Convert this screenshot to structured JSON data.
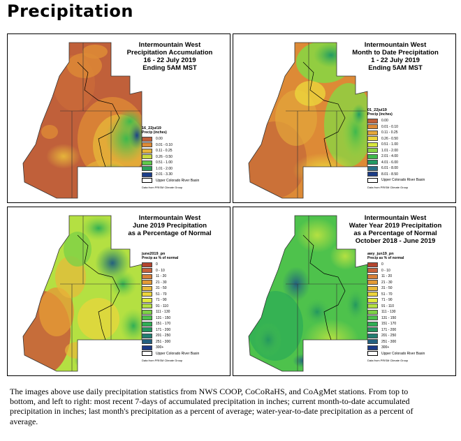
{
  "page": {
    "title": "Precipitation"
  },
  "panels": [
    {
      "title_lines": [
        "Intermountain West",
        "Precipitation Accumulation",
        "16 - 22 July 2019",
        "Ending 5AM MST"
      ],
      "legend_name": "16_22jul19",
      "legend_unit": "Precip (inches)",
      "legend": [
        {
          "label": "0.00",
          "color": "#c0603a"
        },
        {
          "label": "0.01 - 0.10",
          "color": "#dd8a36"
        },
        {
          "label": "0.11 - 0.25",
          "color": "#e6b43a"
        },
        {
          "label": "0.26 - 0.50",
          "color": "#c9dc40"
        },
        {
          "label": "0.51 - 1.00",
          "color": "#5ec84a"
        },
        {
          "label": "1.01 - 2.00",
          "color": "#2aa05a"
        },
        {
          "label": "2.01 - 3.30",
          "color": "#1c3f8a"
        }
      ],
      "basin_label": "Upper Colorado River Basin",
      "credit": "Data from PRISM Climate Group"
    },
    {
      "title_lines": [
        "Intermountain West",
        "Month to Date Precipitation",
        "1 - 22 July 2019",
        "Ending 5AM MST"
      ],
      "legend_name": "01_22jul19",
      "legend_unit": "Precip (inches)",
      "legend": [
        {
          "label": "0.00",
          "color": "#c0603a"
        },
        {
          "label": "0.01 - 0.10",
          "color": "#dd8a36"
        },
        {
          "label": "0.11 - 0.25",
          "color": "#e3a63a"
        },
        {
          "label": "0.26 - 0.50",
          "color": "#ecd53c"
        },
        {
          "label": "0.51 - 1.00",
          "color": "#d8e83e"
        },
        {
          "label": "1.01 - 2.00",
          "color": "#8ad443"
        },
        {
          "label": "2.01 - 4.00",
          "color": "#3fb84d"
        },
        {
          "label": "4.01 - 6.00",
          "color": "#229a63"
        },
        {
          "label": "6.01 - 8.00",
          "color": "#2a6f86"
        },
        {
          "label": "8.01 - 8.50",
          "color": "#1c3c86"
        }
      ],
      "basin_label": "Upper Colorado River Basin",
      "credit": "Data from PRISM Climate Group"
    },
    {
      "title_lines": [
        "Intermountain West",
        "June 2019 Precipitation",
        "as a Percentage of Normal"
      ],
      "legend_name": "june2019_pn",
      "legend_unit": "Precip as % of normal",
      "legend": [
        {
          "label": "0",
          "color": "#b4442e"
        },
        {
          "label": "0 - 10",
          "color": "#c8613a"
        },
        {
          "label": "11 - 20",
          "color": "#d98037"
        },
        {
          "label": "21 - 30",
          "color": "#e39a36"
        },
        {
          "label": "31 - 50",
          "color": "#e8b83a"
        },
        {
          "label": "51 - 70",
          "color": "#ecd43c"
        },
        {
          "label": "71 - 90",
          "color": "#e2ea3e"
        },
        {
          "label": "91 - 110",
          "color": "#b4e042"
        },
        {
          "label": "111 - 130",
          "color": "#7ed146"
        },
        {
          "label": "131 - 150",
          "color": "#4ec24c"
        },
        {
          "label": "151 - 170",
          "color": "#2fae55"
        },
        {
          "label": "171 - 200",
          "color": "#23975f"
        },
        {
          "label": "201 - 250",
          "color": "#237e72"
        },
        {
          "label": "251 - 300",
          "color": "#24607f"
        },
        {
          "label": "300+",
          "color": "#1c3a86"
        }
      ],
      "basin_label": "Upper Colorado River Basin",
      "credit": "Data from PRISM Climate Group"
    },
    {
      "title_lines": [
        "Intermountain West",
        "Water Year 2019 Precipitation",
        "as a Percentage of Normal",
        "October 2018 - June 2019"
      ],
      "legend_name": "awy_jun19_pn",
      "legend_unit": "Precip as % of normal",
      "legend": [
        {
          "label": "0",
          "color": "#b4442e"
        },
        {
          "label": "0 - 10",
          "color": "#c8613a"
        },
        {
          "label": "11 - 20",
          "color": "#d98037"
        },
        {
          "label": "21 - 30",
          "color": "#e39a36"
        },
        {
          "label": "31 - 50",
          "color": "#e8b83a"
        },
        {
          "label": "51 - 70",
          "color": "#ecd43c"
        },
        {
          "label": "71 - 90",
          "color": "#e2ea3e"
        },
        {
          "label": "91 - 110",
          "color": "#b4e042"
        },
        {
          "label": "111 - 130",
          "color": "#7ed146"
        },
        {
          "label": "131 - 150",
          "color": "#4ec24c"
        },
        {
          "label": "151 - 170",
          "color": "#2fae55"
        },
        {
          "label": "171 - 200",
          "color": "#23975f"
        },
        {
          "label": "201 - 250",
          "color": "#237e72"
        },
        {
          "label": "251 - 300",
          "color": "#24607f"
        },
        {
          "label": "300+",
          "color": "#1c3a86"
        }
      ],
      "basin_label": "Upper Colorado River Basin",
      "credit": "Data from PRISM Climate Group"
    }
  ],
  "caption": "The images above use daily precipitation statistics from NWS COOP, CoCoRaHS, and CoAgMet stations. From top to bottom, and left to right: most recent 7-days of accumulated precipitation in inches; current month-to-date accumulated precipitation in inches; last month's precipitation as a percent of average; water-year-to-date precipitation as a percent of average."
}
